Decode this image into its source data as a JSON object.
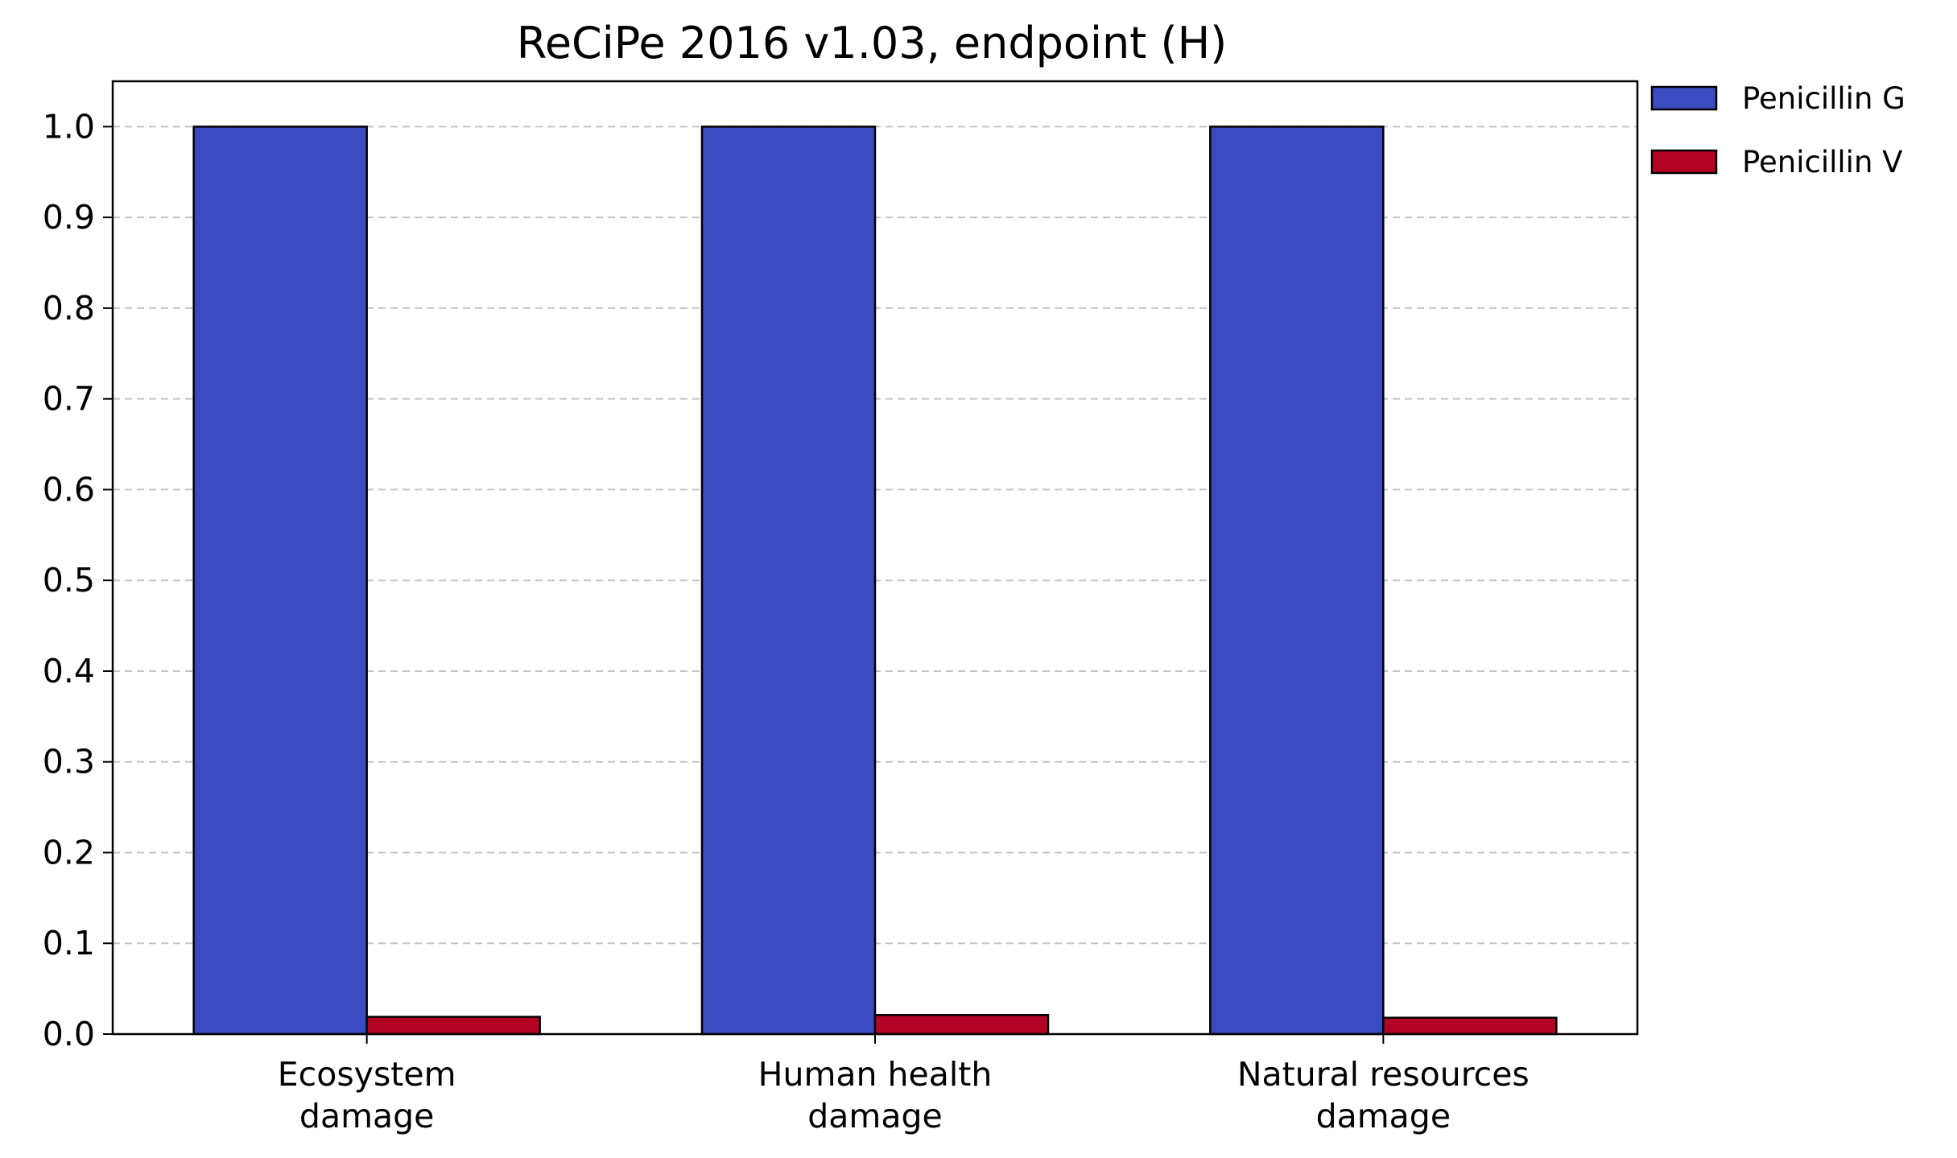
{
  "chart_data": {
    "type": "bar",
    "title": "ReCiPe 2016 v1.03, endpoint (H)",
    "xlabel": "",
    "ylabel": "",
    "categories": [
      [
        "Ecosystem",
        "damage"
      ],
      [
        "Human health",
        "damage"
      ],
      [
        "Natural resources",
        "damage"
      ]
    ],
    "series": [
      {
        "name": "Penicillin G",
        "values": [
          1.0,
          1.0,
          1.0
        ],
        "color": "#3b4cc0"
      },
      {
        "name": "Penicillin V",
        "values": [
          0.019,
          0.021,
          0.018
        ],
        "color": "#b40426"
      }
    ],
    "ylim": [
      0,
      1.05
    ],
    "yticks": [
      "0.0",
      "0.1",
      "0.2",
      "0.3",
      "0.4",
      "0.5",
      "0.6",
      "0.7",
      "0.8",
      "0.9",
      "1.0"
    ],
    "grid": "horizontal dashed",
    "legend_position": "outside top-right"
  }
}
